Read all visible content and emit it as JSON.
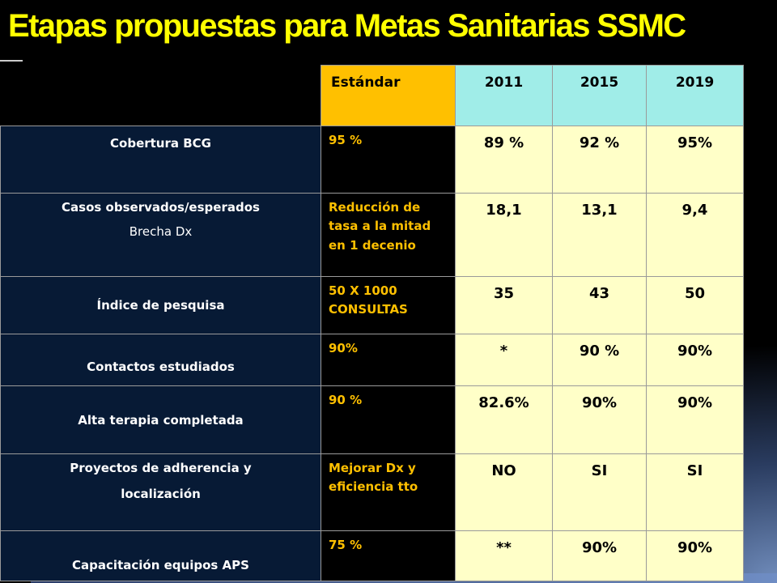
{
  "slide": {
    "title": "Etapas propuestas para Metas Sanitarias SSMC"
  },
  "table": {
    "headers": {
      "standard": "Estándar",
      "years": [
        "2011",
        "2015",
        "2019"
      ]
    },
    "rows": [
      {
        "indicator": "Cobertura BCG",
        "standard": "95 %",
        "values": [
          "89 %",
          "92 %",
          "95%"
        ]
      },
      {
        "indicator": "Casos observados/esperados",
        "indicator_sub": "Brecha Dx",
        "standard": "Reducción de tasa a la mitad en 1 decenio",
        "values": [
          "18,1",
          "13,1",
          "9,4"
        ]
      },
      {
        "indicator": "Índice de pesquisa",
        "standard": "50 X 1000 CONSULTAS",
        "values": [
          "35",
          "43",
          "50"
        ]
      },
      {
        "indicator": "Contactos estudiados",
        "standard": "90%",
        "values": [
          "*",
          "90 %",
          "90%"
        ]
      },
      {
        "indicator": "Alta terapia completada",
        "standard": "90 %",
        "values": [
          "82.6%",
          "90%",
          "90%"
        ]
      },
      {
        "indicator": "Proyectos de adherencia y",
        "indicator_line2": "localización",
        "standard": "Mejorar Dx y eficiencia tto",
        "values": [
          "NO",
          "SI",
          "SI"
        ]
      },
      {
        "indicator": "Capacitación equipos APS",
        "standard": "75 %",
        "values": [
          "**",
          "90%",
          "90%"
        ]
      }
    ]
  },
  "colors": {
    "title": "#ffff00",
    "header_standard": "#ffc000",
    "header_years": "#a0ede8",
    "indicator_bg": "#071a35",
    "standard_text": "#ffc000",
    "value_bg": "#ffffc8"
  }
}
